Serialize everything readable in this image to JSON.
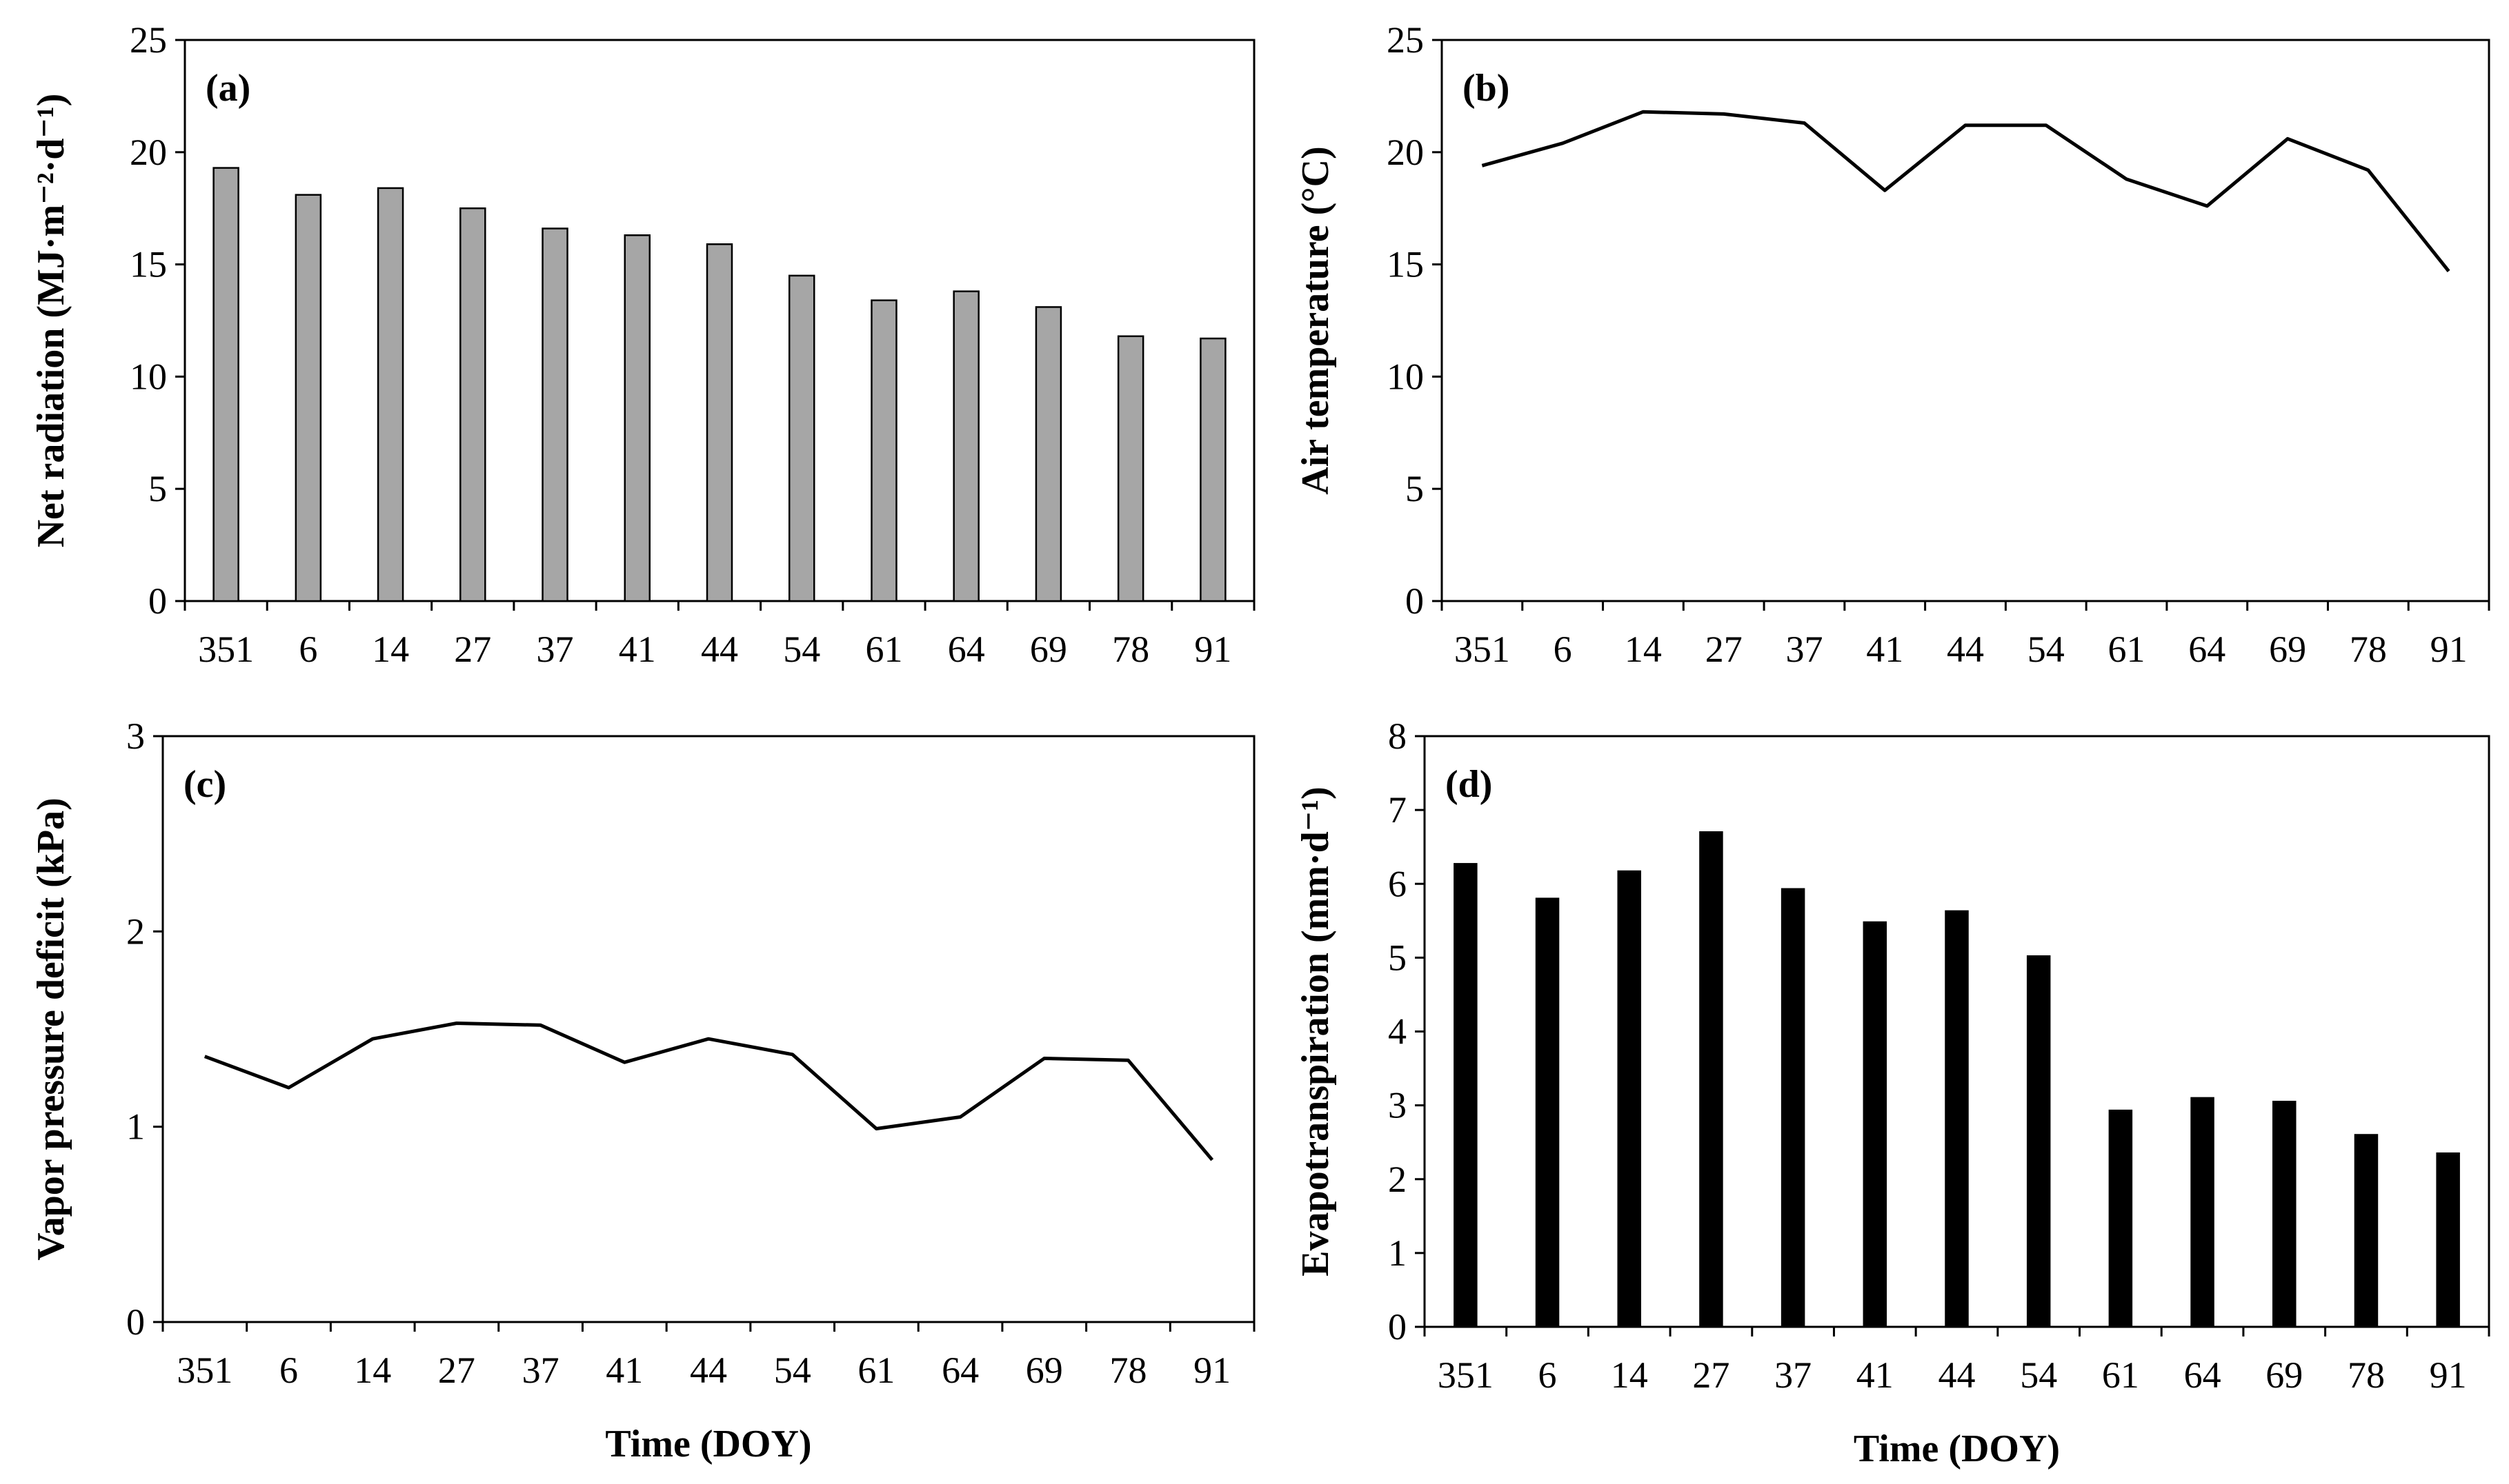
{
  "chart_data": [
    {
      "id": "a",
      "type": "bar",
      "panel_label": "(a)",
      "ylabel": "Net radiation (MJ·m⁻²·d⁻¹)",
      "xlabel": "",
      "categories": [
        "351",
        "6",
        "14",
        "27",
        "37",
        "41",
        "44",
        "54",
        "61",
        "64",
        "69",
        "78",
        "91"
      ],
      "values": [
        19.3,
        18.1,
        18.4,
        17.5,
        16.6,
        16.3,
        15.9,
        14.5,
        13.4,
        13.8,
        13.1,
        11.8,
        11.7
      ],
      "ylim": [
        0,
        25
      ],
      "yticks": [
        "0",
        "5",
        "10",
        "15",
        "20",
        "25"
      ],
      "bar_color": "#a6a6a6"
    },
    {
      "id": "b",
      "type": "line",
      "panel_label": "(b)",
      "ylabel": "Air temperature (°C)",
      "xlabel": "",
      "categories": [
        "351",
        "6",
        "14",
        "27",
        "37",
        "41",
        "44",
        "54",
        "61",
        "64",
        "69",
        "78",
        "91"
      ],
      "values": [
        19.4,
        20.4,
        21.8,
        21.7,
        21.3,
        18.3,
        21.2,
        21.2,
        18.8,
        17.6,
        20.6,
        19.2,
        14.7
      ],
      "ylim": [
        0,
        25
      ],
      "yticks": [
        "0",
        "5",
        "10",
        "15",
        "20",
        "25"
      ],
      "line_color": "#000000"
    },
    {
      "id": "c",
      "type": "line",
      "panel_label": "(c)",
      "ylabel": "Vapor pressure deficit (kPa)",
      "xlabel": "Time (DOY)",
      "categories": [
        "351",
        "6",
        "14",
        "27",
        "37",
        "41",
        "44",
        "54",
        "61",
        "64",
        "69",
        "78",
        "91"
      ],
      "values": [
        1.36,
        1.2,
        1.45,
        1.53,
        1.52,
        1.33,
        1.45,
        1.37,
        0.99,
        1.05,
        1.35,
        1.34,
        0.83
      ],
      "ylim": [
        0,
        3
      ],
      "yticks": [
        "0",
        "1",
        "2",
        "3"
      ],
      "line_color": "#000000"
    },
    {
      "id": "d",
      "type": "bar",
      "panel_label": "(d)",
      "ylabel": "Evapotranspiration (mm·d⁻¹)",
      "xlabel": "Time (DOY)",
      "categories": [
        "351",
        "6",
        "14",
        "27",
        "37",
        "41",
        "44",
        "54",
        "61",
        "64",
        "69",
        "78",
        "91"
      ],
      "values": [
        6.27,
        5.8,
        6.17,
        6.7,
        5.93,
        5.48,
        5.63,
        5.02,
        2.93,
        3.1,
        3.05,
        2.6,
        2.35
      ],
      "ylim": [
        0,
        8
      ],
      "yticks": [
        "0",
        "1",
        "2",
        "3",
        "4",
        "5",
        "6",
        "7",
        "8"
      ],
      "bar_color": "#000000"
    }
  ]
}
